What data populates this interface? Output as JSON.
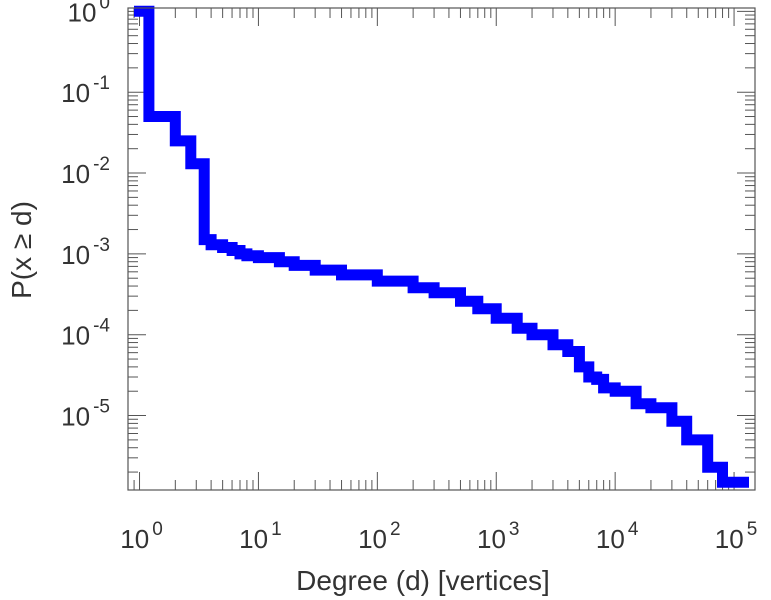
{
  "chart_data": {
    "type": "line",
    "step": true,
    "xlabel": "Degree (d) [vertices]",
    "ylabel": "P(x ≥ d)",
    "xscale": "log",
    "yscale": "log",
    "xlim": [
      0.8,
      150000
    ],
    "ylim": [
      1.2e-06,
      1.1
    ],
    "grid": false,
    "legend": "none",
    "x_ticks": [
      {
        "value": 1,
        "base": "10",
        "exp": "0"
      },
      {
        "value": 10,
        "base": "10",
        "exp": "1"
      },
      {
        "value": 100,
        "base": "10",
        "exp": "2"
      },
      {
        "value": 1000,
        "base": "10",
        "exp": "3"
      },
      {
        "value": 10000,
        "base": "10",
        "exp": "4"
      },
      {
        "value": 100000,
        "base": "10",
        "exp": "5"
      }
    ],
    "y_ticks": [
      {
        "value": 1,
        "base": "10",
        "exp": "0"
      },
      {
        "value": 0.1,
        "base": "10",
        "exp": "-1"
      },
      {
        "value": 0.01,
        "base": "10",
        "exp": "-2"
      },
      {
        "value": 0.001,
        "base": "10",
        "exp": "-3"
      },
      {
        "value": 0.0001,
        "base": "10",
        "exp": "-4"
      },
      {
        "value": 1e-05,
        "base": "10",
        "exp": "-5"
      }
    ],
    "colors": {
      "series": "#0000ff",
      "axis": "#555555",
      "text": "#333333"
    },
    "series": [
      {
        "x": [
          1,
          1.2,
          2,
          2.7,
          3.5,
          4,
          5,
          6,
          7,
          8,
          10,
          15,
          20,
          30,
          50,
          100,
          200,
          300,
          500,
          700,
          1000,
          1500,
          2000,
          3000,
          4000,
          5000,
          6000,
          7000,
          8000,
          10000,
          15000,
          20000,
          30000,
          40000,
          50000,
          60000,
          80000,
          100000,
          120000
        ],
        "y": [
          1,
          0.05,
          0.025,
          0.013,
          0.0015,
          0.0013,
          0.0012,
          0.0011,
          0.001,
          0.00095,
          0.0009,
          0.0008,
          0.00072,
          0.00063,
          0.00055,
          0.00046,
          0.00038,
          0.00033,
          0.00026,
          0.00021,
          0.00016,
          0.00012,
          0.0001,
          7.5e-05,
          6.2e-05,
          4e-05,
          3e-05,
          2.8e-05,
          2.2e-05,
          2e-05,
          1.4e-05,
          1.25e-05,
          8.5e-06,
          5e-06,
          5e-06,
          2.3e-06,
          1.5e-06,
          1.5e-06,
          1.5e-06
        ]
      }
    ]
  }
}
